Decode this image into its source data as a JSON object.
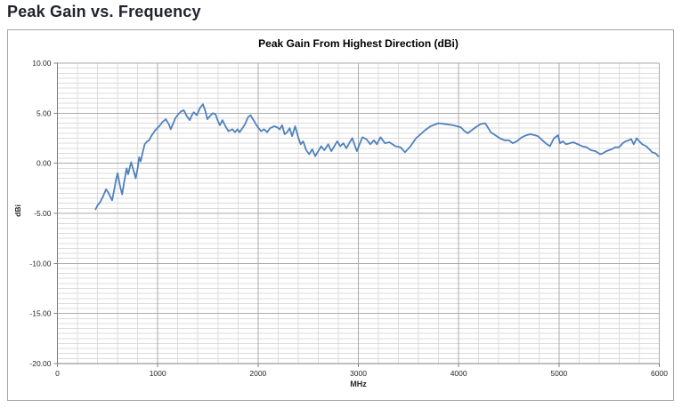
{
  "page": {
    "title": "Peak Gain vs. Frequency"
  },
  "chart_data": {
    "type": "line",
    "title": "Peak Gain From Highest Direction (dBi)",
    "xlabel": "MHz",
    "ylabel": "dBi",
    "xlim": [
      0,
      6000
    ],
    "ylim": [
      -20,
      10
    ],
    "x_tick_labels": [
      "0",
      "1000",
      "2000",
      "3000",
      "4000",
      "5000",
      "6000"
    ],
    "x_major_ticks": [
      0,
      1000,
      2000,
      3000,
      4000,
      5000,
      6000
    ],
    "y_tick_labels": [
      "10.00",
      "5.00",
      "0.00",
      "-5.00",
      "-10.00",
      "-15.00",
      "-20.00"
    ],
    "y_major_ticks": [
      10,
      5,
      0,
      -5,
      -10,
      -15,
      -20
    ],
    "x_minor_step": 200,
    "y_minor_step": 0.5,
    "grid": true,
    "legend_position": "none",
    "colors": {
      "line": "#4F81BD",
      "minor_grid": "#dcdcdc",
      "major_grid": "#ababab",
      "axis": "#808080",
      "frame_border": "#a6a6a6"
    },
    "series": [
      {
        "name": "Peak Gain",
        "x": [
          380,
          400,
          425,
          455,
          485,
          505,
          520,
          545,
          565,
          585,
          600,
          620,
          645,
          665,
          690,
          705,
          735,
          755,
          780,
          800,
          815,
          830,
          850,
          870,
          895,
          915,
          935,
          955,
          975,
          995,
          1015,
          1045,
          1080,
          1110,
          1130,
          1155,
          1175,
          1205,
          1235,
          1260,
          1290,
          1320,
          1340,
          1360,
          1390,
          1420,
          1450,
          1475,
          1495,
          1520,
          1550,
          1575,
          1600,
          1620,
          1645,
          1675,
          1705,
          1745,
          1770,
          1795,
          1815,
          1845,
          1870,
          1900,
          1925,
          1955,
          1985,
          2030,
          2060,
          2090,
          2120,
          2160,
          2190,
          2215,
          2240,
          2265,
          2290,
          2315,
          2340,
          2370,
          2400,
          2425,
          2450,
          2480,
          2510,
          2540,
          2570,
          2600,
          2630,
          2660,
          2700,
          2730,
          2760,
          2790,
          2820,
          2850,
          2880,
          2915,
          2940,
          2985,
          3040,
          3080,
          3120,
          3155,
          3185,
          3220,
          3265,
          3310,
          3370,
          3420,
          3465,
          3520,
          3575,
          3620,
          3665,
          3720,
          3800,
          3870,
          3945,
          4020,
          4060,
          4090,
          4170,
          4215,
          4265,
          4320,
          4365,
          4410,
          4455,
          4500,
          4540,
          4580,
          4630,
          4675,
          4715,
          4760,
          4790,
          4835,
          4880,
          4910,
          4950,
          4990,
          5010,
          5040,
          5070,
          5110,
          5140,
          5190,
          5230,
          5275,
          5320,
          5365,
          5410,
          5440,
          5470,
          5525,
          5560,
          5600,
          5635,
          5665,
          5695,
          5720,
          5745,
          5775,
          5800,
          5830,
          5870,
          5900,
          5930,
          5960,
          5990
        ],
        "y": [
          -4.6,
          -4.2,
          -3.9,
          -3.3,
          -2.6,
          -2.9,
          -3.2,
          -3.7,
          -2.7,
          -1.6,
          -1.0,
          -2.1,
          -3.1,
          -1.9,
          -0.5,
          -1.1,
          0.1,
          -0.6,
          -1.5,
          -0.5,
          0.6,
          0.2,
          1.1,
          1.9,
          2.2,
          2.3,
          2.7,
          3.0,
          3.3,
          3.5,
          3.7,
          4.1,
          4.4,
          3.9,
          3.4,
          4.0,
          4.5,
          4.9,
          5.2,
          5.3,
          4.7,
          4.3,
          4.8,
          5.1,
          4.8,
          5.5,
          5.9,
          5.2,
          4.4,
          4.7,
          5.0,
          4.9,
          4.2,
          3.8,
          4.3,
          3.7,
          3.2,
          3.4,
          3.1,
          3.4,
          3.1,
          3.5,
          3.9,
          4.6,
          4.8,
          4.3,
          3.8,
          3.2,
          3.4,
          3.1,
          3.5,
          3.7,
          3.6,
          3.4,
          3.8,
          2.9,
          3.1,
          3.5,
          2.7,
          3.7,
          2.6,
          1.9,
          2.2,
          1.3,
          0.9,
          1.4,
          0.7,
          1.2,
          1.7,
          1.3,
          1.9,
          1.2,
          1.7,
          2.2,
          1.7,
          2.0,
          1.5,
          2.1,
          2.5,
          1.2,
          2.6,
          2.4,
          1.9,
          2.3,
          1.9,
          2.6,
          2.0,
          2.1,
          1.7,
          1.6,
          1.1,
          1.7,
          2.5,
          2.9,
          3.3,
          3.7,
          4.0,
          3.9,
          3.8,
          3.6,
          3.2,
          3.0,
          3.6,
          3.9,
          4.0,
          3.1,
          2.8,
          2.5,
          2.3,
          2.3,
          2.0,
          2.2,
          2.6,
          2.8,
          2.9,
          2.8,
          2.7,
          2.3,
          1.9,
          1.7,
          2.5,
          2.8,
          2.0,
          2.2,
          1.9,
          2.0,
          2.1,
          1.9,
          1.7,
          1.6,
          1.3,
          1.2,
          0.9,
          1.0,
          1.2,
          1.4,
          1.6,
          1.6,
          2.0,
          2.2,
          2.3,
          2.4,
          1.9,
          2.5,
          2.2,
          1.9,
          1.7,
          1.4,
          1.1,
          1.0,
          0.7
        ]
      }
    ]
  }
}
